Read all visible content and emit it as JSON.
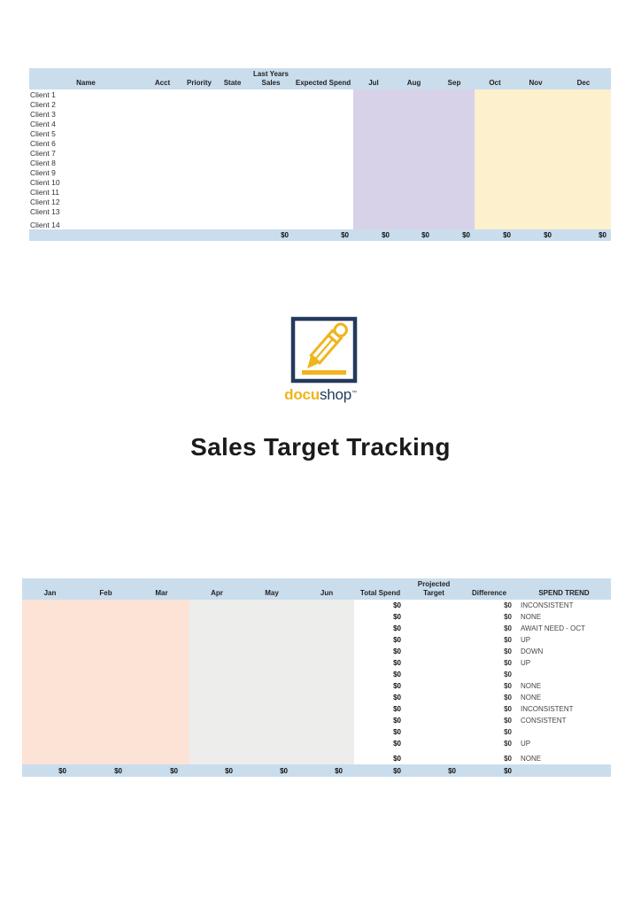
{
  "page": {
    "title": "Sales Target Tracking"
  },
  "logo": {
    "icon": "pencil-square-icon",
    "brand_first": "docu",
    "brand_second": "shop",
    "trademark": "™"
  },
  "colors": {
    "header_blue": "#cadded",
    "lavender": "#d8d2e8",
    "cream": "#fdf0cc",
    "peach": "#fce3d6",
    "gray": "#ededec",
    "navy": "#23395d",
    "yellow": "#f0b41c"
  },
  "top_table": {
    "columns": [
      {
        "label": "Name"
      },
      {
        "label": "Acct"
      },
      {
        "label": "Priority"
      },
      {
        "label": "State"
      },
      {
        "label_top": "Last Years",
        "label": "Sales"
      },
      {
        "label": "Expected Spend"
      },
      {
        "label": "Jul"
      },
      {
        "label": "Aug"
      },
      {
        "label": "Sep"
      },
      {
        "label": "Oct"
      },
      {
        "label": "Nov"
      },
      {
        "label": "Dec"
      }
    ],
    "rows": [
      {
        "name": "Client 1"
      },
      {
        "name": "Client 2"
      },
      {
        "name": "Client 3"
      },
      {
        "name": "Client 4"
      },
      {
        "name": "Client 5"
      },
      {
        "name": "Client 6"
      },
      {
        "name": "Client 7"
      },
      {
        "name": "Client 8"
      },
      {
        "name": "Client 9"
      },
      {
        "name": "Client 10"
      },
      {
        "name": "Client 11"
      },
      {
        "name": "Client 12"
      },
      {
        "name": "Client 13"
      },
      {
        "name": "Client 14"
      }
    ],
    "totals": [
      "",
      "",
      "",
      "",
      "$0",
      "$0",
      "$0",
      "$0",
      "$0",
      "$0",
      "$0",
      "$0"
    ]
  },
  "bottom_table": {
    "columns": [
      {
        "label": "Jan"
      },
      {
        "label": "Feb"
      },
      {
        "label": "Mar"
      },
      {
        "label": "Apr"
      },
      {
        "label": "May"
      },
      {
        "label": "Jun"
      },
      {
        "label": "Total Spend"
      },
      {
        "label_top": "Projected",
        "label": "Target"
      },
      {
        "label": "Difference"
      },
      {
        "label": "SPEND TREND"
      }
    ],
    "rows": [
      {
        "total_spend": "$0",
        "projected_target": "",
        "difference": "$0",
        "trend": "INCONSISTENT"
      },
      {
        "total_spend": "$0",
        "projected_target": "",
        "difference": "$0",
        "trend": "NONE"
      },
      {
        "total_spend": "$0",
        "projected_target": "",
        "difference": "$0",
        "trend": "AWAIT NEED - OCT"
      },
      {
        "total_spend": "$0",
        "projected_target": "",
        "difference": "$0",
        "trend": "UP"
      },
      {
        "total_spend": "$0",
        "projected_target": "",
        "difference": "$0",
        "trend": "DOWN"
      },
      {
        "total_spend": "$0",
        "projected_target": "",
        "difference": "$0",
        "trend": "UP"
      },
      {
        "total_spend": "$0",
        "projected_target": "",
        "difference": "$0",
        "trend": ""
      },
      {
        "total_spend": "$0",
        "projected_target": "",
        "difference": "$0",
        "trend": "NONE"
      },
      {
        "total_spend": "$0",
        "projected_target": "",
        "difference": "$0",
        "trend": "NONE"
      },
      {
        "total_spend": "$0",
        "projected_target": "",
        "difference": "$0",
        "trend": "INCONSISTENT"
      },
      {
        "total_spend": "$0",
        "projected_target": "",
        "difference": "$0",
        "trend": "CONSISTENT"
      },
      {
        "total_spend": "$0",
        "projected_target": "",
        "difference": "$0",
        "trend": ""
      },
      {
        "total_spend": "$0",
        "projected_target": "",
        "difference": "$0",
        "trend": "UP"
      },
      {
        "total_spend": "$0",
        "projected_target": "",
        "difference": "$0",
        "trend": "NONE"
      }
    ],
    "totals": [
      "$0",
      "$0",
      "$0",
      "$0",
      "$0",
      "$0",
      "$0",
      "$0",
      "$0",
      ""
    ]
  }
}
